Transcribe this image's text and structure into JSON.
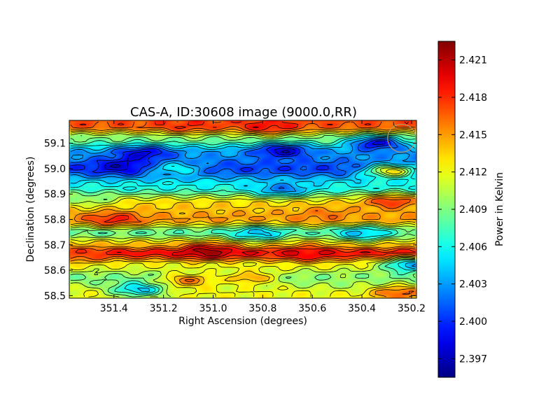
{
  "chart_data": {
    "type": "heatmap",
    "title": "CAS-A, ID:30608 image (9000.0,RR)",
    "xlabel": "Right Ascension (degrees)",
    "ylabel": "Declination (degrees)",
    "x_reversed": true,
    "xlim": [
      351.58,
      350.18
    ],
    "ylim": [
      58.49,
      59.19
    ],
    "x_ticks": [
      351.4,
      351.2,
      351.0,
      350.8,
      350.6,
      350.4,
      350.2
    ],
    "x_tick_labels": [
      "351.4",
      "351.2",
      "351.0",
      "350.8",
      "350.6",
      "350.4",
      "350.2"
    ],
    "y_ticks": [
      58.5,
      58.6,
      58.7,
      58.8,
      58.9,
      59.0,
      59.1
    ],
    "y_tick_labels": [
      "58.5",
      "58.6",
      "58.7",
      "58.8",
      "58.9",
      "59.0",
      "59.1"
    ],
    "colormap": "jet",
    "colorbar": {
      "label": "Power in Kelvin",
      "vmin": 2.3955,
      "vmax": 2.4225,
      "ticks": [
        2.397,
        2.4,
        2.403,
        2.406,
        2.409,
        2.412,
        2.415,
        2.418,
        2.421
      ],
      "tick_labels": [
        "2.397",
        "2.400",
        "2.403",
        "2.406",
        "2.409",
        "2.412",
        "2.415",
        "2.418",
        "2.421"
      ]
    },
    "contours": true,
    "contour_color": "#000000",
    "grid": false,
    "value_bands": [
      {
        "dec": 59.17,
        "value": 2.417
      },
      {
        "dec": 59.12,
        "value": 2.409
      },
      {
        "dec": 59.06,
        "value": 2.403
      },
      {
        "dec": 59.0,
        "value": 2.4005
      },
      {
        "dec": 58.93,
        "value": 2.406
      },
      {
        "dec": 58.86,
        "value": 2.4135
      },
      {
        "dec": 58.8,
        "value": 2.415
      },
      {
        "dec": 58.75,
        "value": 2.408
      },
      {
        "dec": 58.7,
        "value": 2.414
      },
      {
        "dec": 58.67,
        "value": 2.419
      },
      {
        "dec": 58.62,
        "value": 2.412
      },
      {
        "dec": 58.57,
        "value": 2.409
      },
      {
        "dec": 58.51,
        "value": 2.412
      }
    ],
    "features": [
      {
        "ra": 351.37,
        "dec": 59.01,
        "value": 2.3975
      },
      {
        "ra": 350.72,
        "dec": 59.07,
        "value": 2.3975
      },
      {
        "ra": 350.34,
        "dec": 59.1,
        "value": 2.398
      },
      {
        "ra": 351.28,
        "dec": 59.06,
        "value": 2.398
      },
      {
        "ra": 350.28,
        "dec": 58.99,
        "value": 2.413
      },
      {
        "ra": 350.28,
        "dec": 58.87,
        "value": 2.418
      },
      {
        "ra": 351.02,
        "dec": 58.675,
        "value": 2.4215
      },
      {
        "ra": 350.62,
        "dec": 58.665,
        "value": 2.4195
      },
      {
        "ra": 351.4,
        "dec": 58.8,
        "value": 2.4185
      },
      {
        "ra": 350.82,
        "dec": 58.745,
        "value": 2.404
      },
      {
        "ra": 350.4,
        "dec": 58.745,
        "value": 2.404
      },
      {
        "ra": 350.72,
        "dec": 58.92,
        "value": 2.402
      },
      {
        "ra": 350.2,
        "dec": 58.62,
        "value": 2.403
      },
      {
        "ra": 351.3,
        "dec": 58.525,
        "value": 2.404
      },
      {
        "ra": 351.1,
        "dec": 58.56,
        "value": 2.416
      },
      {
        "ra": 350.78,
        "dec": 59.165,
        "value": 2.419
      },
      {
        "ra": 351.1,
        "dec": 59.17,
        "value": 2.418
      },
      {
        "ra": 350.25,
        "dec": 58.51,
        "value": 2.417
      },
      {
        "ra": 350.85,
        "dec": 58.57,
        "value": 2.415
      },
      {
        "ra": 351.15,
        "dec": 59.0,
        "value": 2.406
      },
      {
        "ra": 350.45,
        "dec": 58.55,
        "value": 2.41
      },
      {
        "ra": 351.5,
        "dec": 58.88,
        "value": 2.409
      },
      {
        "ra": 350.55,
        "dec": 58.82,
        "value": 2.416
      },
      {
        "ra": 351.55,
        "dec": 58.66,
        "value": 2.417
      }
    ],
    "beam_marker": {
      "ra": 350.24,
      "dec": 59.12,
      "color": "#b29a67"
    }
  }
}
